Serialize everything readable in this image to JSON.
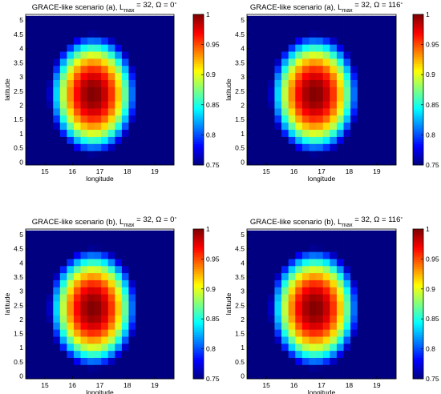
{
  "panels": [
    {
      "title_parts": [
        "GRACE-like scenario (a), L",
        "max",
        " = 32, Ω = 0",
        "°"
      ],
      "chart_data": {
        "type": "heatmap",
        "title": "GRACE-like scenario (a), Lmax = 32, Ω = 0°",
        "xlabel": "longitude",
        "ylabel": "latitude",
        "xlim": [
          14.3,
          19.7
        ],
        "ylim": [
          -0.1,
          5.2
        ],
        "xticks": [
          "15",
          "16",
          "17",
          "18",
          "19"
        ],
        "yticks": [
          "0",
          "0.5",
          "1",
          "1.5",
          "2",
          "2.5",
          "3",
          "3.5",
          "4",
          "4.5",
          "5"
        ],
        "colorbar_range": [
          0.75,
          1
        ],
        "colorbar_ticks": [
          "0.75",
          "0.8",
          "0.85",
          "0.9",
          "0.95",
          "1"
        ],
        "colormap": "jet",
        "grid": {
          "lon_start": 14.3,
          "lon_step": 0.25,
          "ncols": 22,
          "lat_start": -0.1,
          "lat_step": 0.25,
          "nrows": 21
        },
        "peak": {
          "lon": 16.75,
          "lat": 2.4,
          "value": 1.0
        }
      }
    },
    {
      "title_parts": [
        "GRACE-like scenario (a), L",
        "max",
        " = 32, Ω = 116",
        "°"
      ],
      "chart_data": {
        "type": "heatmap",
        "title": "GRACE-like scenario (a), Lmax = 32, Ω = 116°",
        "xlabel": "longitude",
        "ylabel": "latitude",
        "xlim": [
          14.3,
          19.7
        ],
        "ylim": [
          -0.1,
          5.2
        ],
        "xticks": [
          "15",
          "16",
          "17",
          "18",
          "19"
        ],
        "yticks": [
          "0",
          "0.5",
          "1",
          "1.5",
          "2",
          "2.5",
          "3",
          "3.5",
          "4",
          "4.5",
          "5"
        ],
        "colorbar_range": [
          0.75,
          1
        ],
        "colorbar_ticks": [
          "0.75",
          "0.8",
          "0.85",
          "0.9",
          "0.95",
          "1"
        ],
        "colormap": "jet",
        "grid": {
          "lon_start": 14.3,
          "lon_step": 0.25,
          "ncols": 22,
          "lat_start": -0.1,
          "lat_step": 0.25,
          "nrows": 21
        },
        "peak": {
          "lon": 16.75,
          "lat": 2.4,
          "value": 1.0
        }
      }
    },
    {
      "title_parts": [
        "GRACE-like scenario (b), L",
        "max",
        " = 32, Ω = 0",
        "°"
      ],
      "chart_data": {
        "type": "heatmap",
        "title": "GRACE-like scenario (b), Lmax = 32, Ω = 0°",
        "xlabel": "longitude",
        "ylabel": "latitude",
        "xlim": [
          14.3,
          19.7
        ],
        "ylim": [
          -0.1,
          5.2
        ],
        "xticks": [
          "15",
          "16",
          "17",
          "18",
          "19"
        ],
        "yticks": [
          "0",
          "0.5",
          "1",
          "1.5",
          "2",
          "2.5",
          "3",
          "3.5",
          "4",
          "4.5",
          "5"
        ],
        "colorbar_range": [
          0.75,
          1
        ],
        "colorbar_ticks": [
          "0.75",
          "0.8",
          "0.85",
          "0.9",
          "0.95",
          "1"
        ],
        "colormap": "jet",
        "grid": {
          "lon_start": 14.3,
          "lon_step": 0.25,
          "ncols": 22,
          "lat_start": -0.1,
          "lat_step": 0.25,
          "nrows": 21
        },
        "peak": {
          "lon": 16.75,
          "lat": 2.4,
          "value": 1.0
        }
      }
    },
    {
      "title_parts": [
        "GRACE-like scenario (b), L",
        "max",
        " = 32, Ω = 116",
        "°"
      ],
      "chart_data": {
        "type": "heatmap",
        "title": "GRACE-like scenario (b), Lmax = 32, Ω = 116°",
        "xlabel": "longitude",
        "ylabel": "latitude",
        "xlim": [
          14.3,
          19.7
        ],
        "ylim": [
          -0.1,
          5.2
        ],
        "xticks": [
          "15",
          "16",
          "17",
          "18",
          "19"
        ],
        "yticks": [
          "0",
          "0.5",
          "1",
          "1.5",
          "2",
          "2.5",
          "3",
          "3.5",
          "4",
          "4.5",
          "5"
        ],
        "colorbar_range": [
          0.75,
          1
        ],
        "colorbar_ticks": [
          "0.75",
          "0.8",
          "0.85",
          "0.9",
          "0.95",
          "1"
        ],
        "colormap": "jet",
        "grid": {
          "lon_start": 14.3,
          "lon_step": 0.25,
          "ncols": 22,
          "lat_start": -0.1,
          "lat_step": 0.25,
          "nrows": 21
        },
        "peak": {
          "lon": 16.75,
          "lat": 2.4,
          "value": 1.0
        }
      }
    }
  ]
}
